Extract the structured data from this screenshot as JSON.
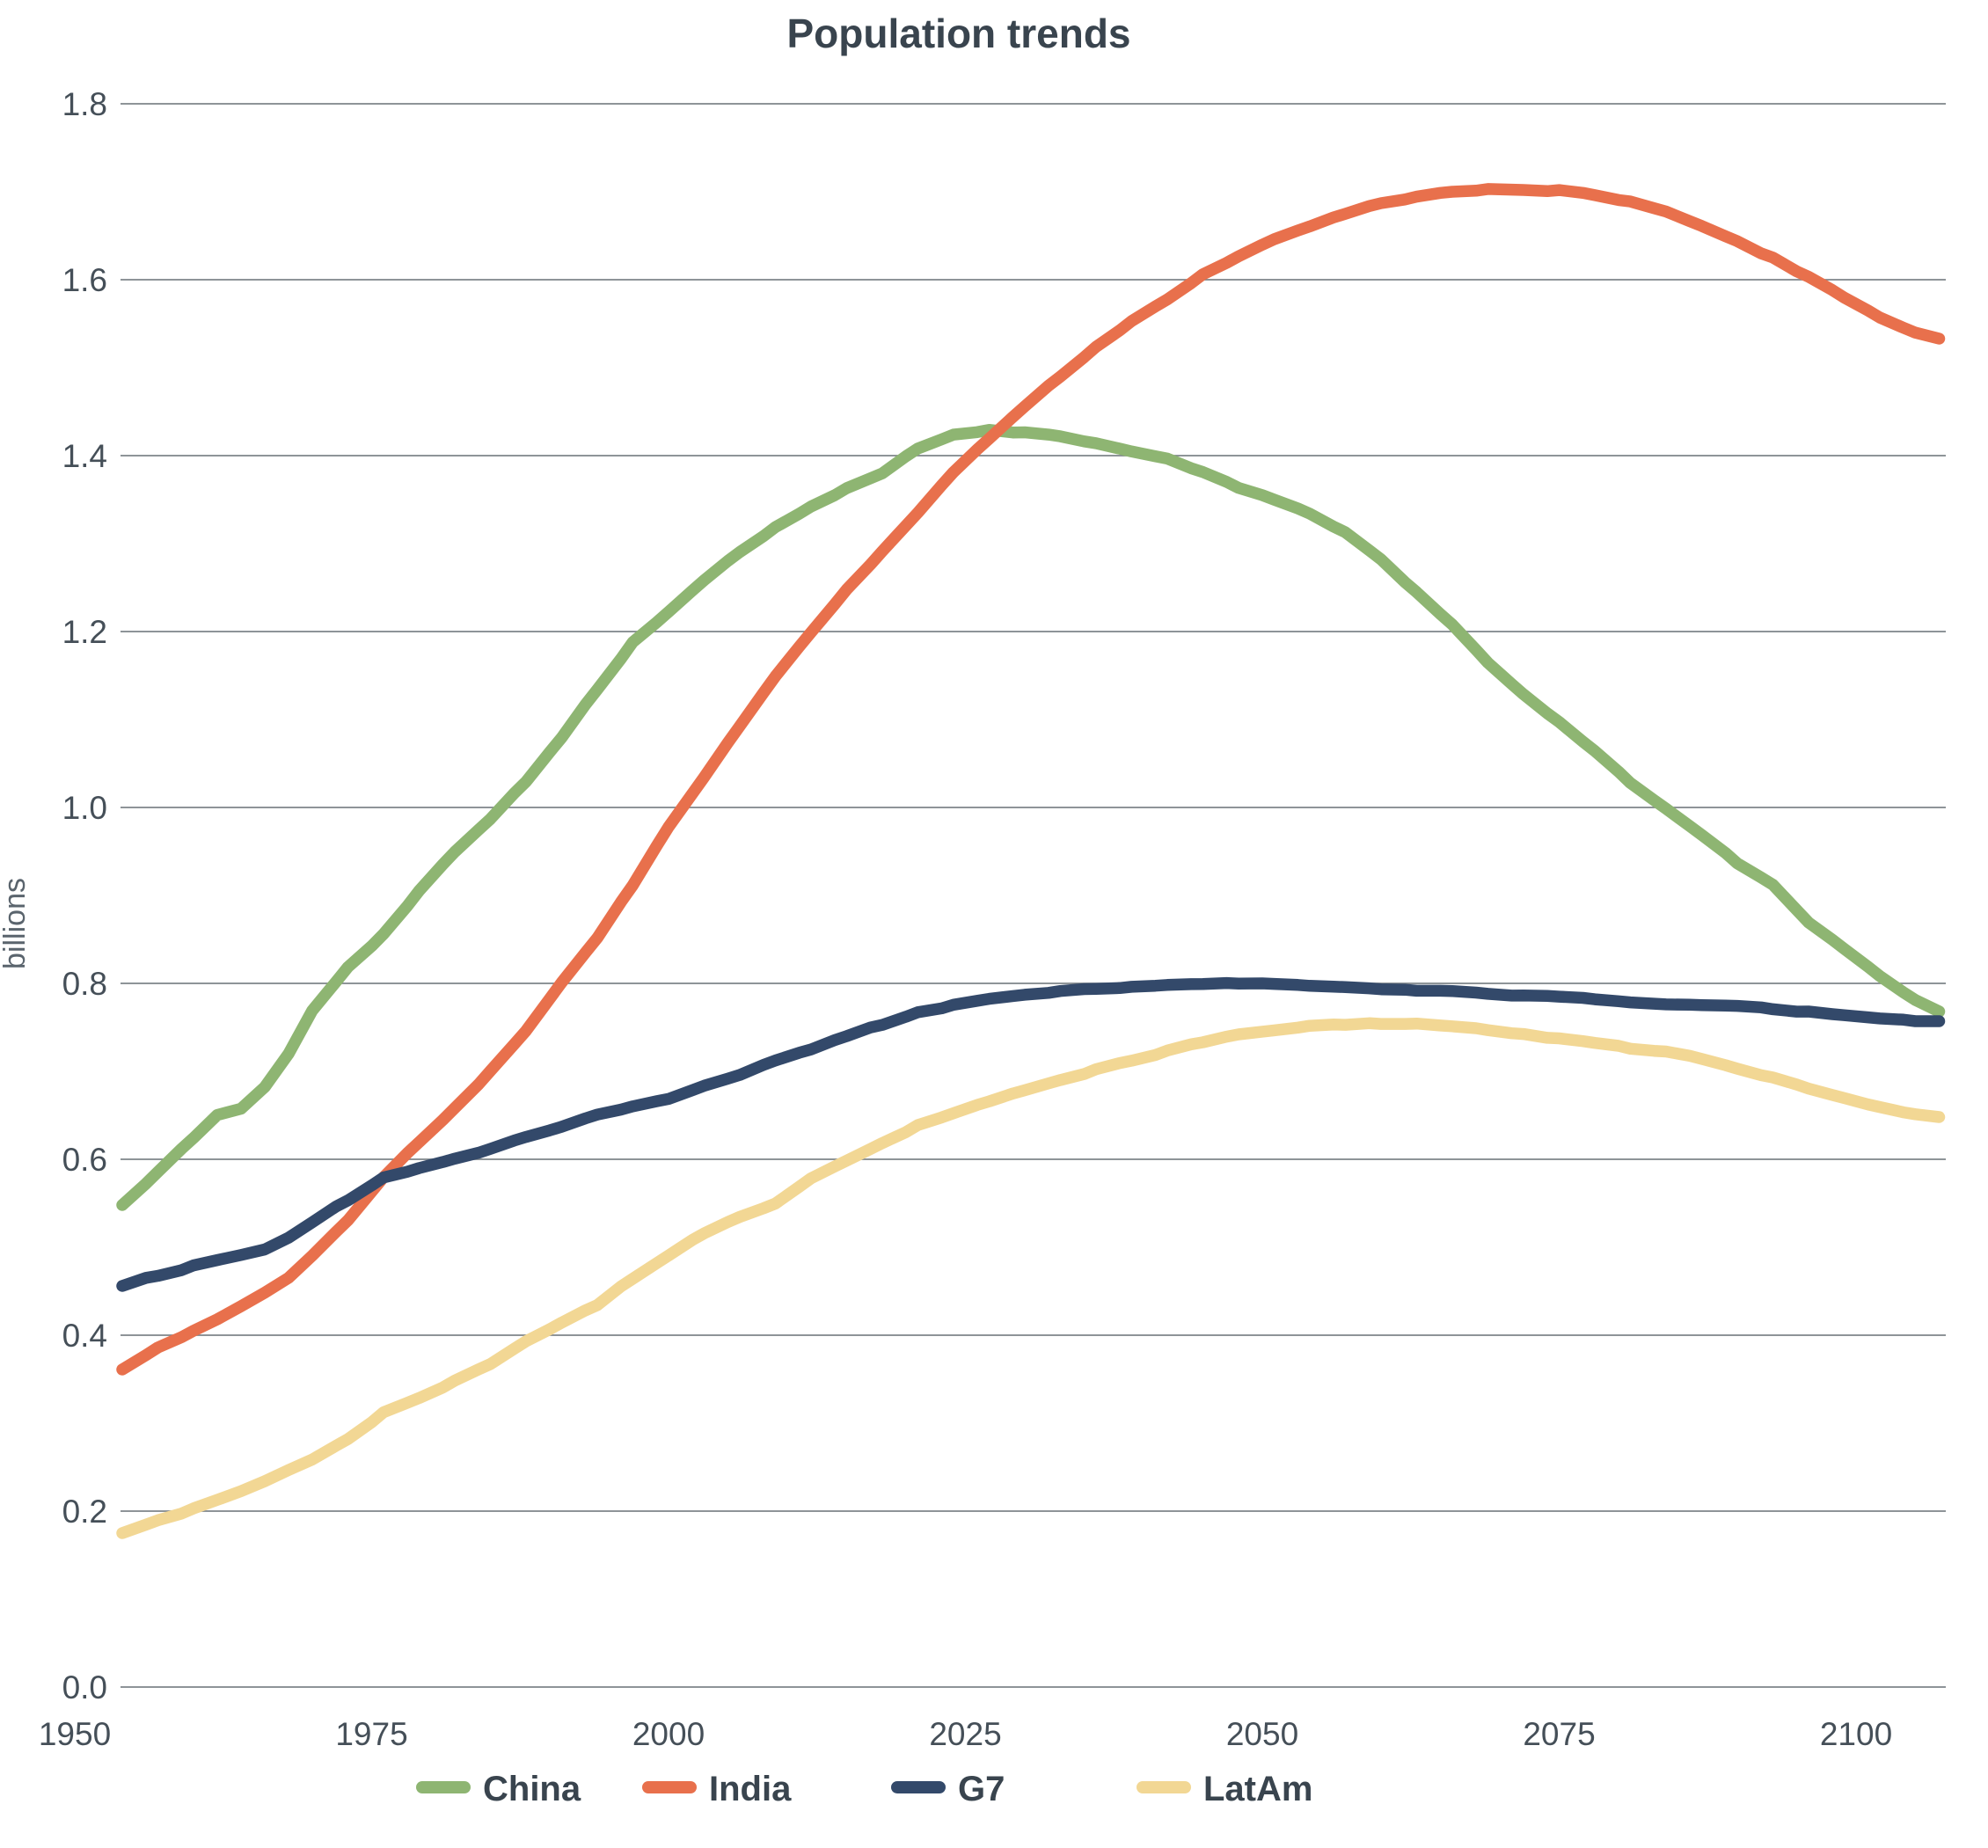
{
  "chart_data": {
    "type": "line",
    "title": "Population trends",
    "xlabel": "",
    "ylabel": "billions",
    "grid": "horizontal",
    "legend_position": "bottom",
    "background": "#ffffff",
    "gridline_color": "#7e8489",
    "text_color": "#39444e",
    "x_axis": {
      "ticks": [
        "1950",
        "1975",
        "2000",
        "2025",
        "2050",
        "2075",
        "2100"
      ],
      "tick_years": [
        1950,
        1975,
        2000,
        2025,
        2050,
        2075,
        2100
      ]
    },
    "y_axis": {
      "ticks": [
        "0.0",
        "0.2",
        "0.4",
        "0.6",
        "0.8",
        "1.0",
        "1.2",
        "1.4",
        "1.6",
        "1.8"
      ],
      "tick_values": [
        0,
        0.2,
        0.4,
        0.6,
        0.8,
        1.0,
        1.2,
        1.4,
        1.6,
        1.8
      ],
      "range": [
        0,
        1.8
      ]
    },
    "x_range_years": [
      1954,
      2107
    ],
    "years": [
      1954,
      1957,
      1960,
      1962,
      1964,
      1966,
      1968,
      1970,
      1973,
      1976,
      1979,
      1982,
      1985,
      1988,
      1991,
      1994,
      1997,
      2000,
      2003,
      2006,
      2009,
      2012,
      2015,
      2018,
      2021,
      2024,
      2027,
      2030,
      2033,
      2036,
      2039,
      2042,
      2045,
      2048,
      2051,
      2054,
      2057,
      2060,
      2063,
      2066,
      2069,
      2072,
      2075,
      2078,
      2081,
      2084,
      2087,
      2090,
      2093,
      2096,
      2099,
      2102,
      2105,
      2107
    ],
    "series": [
      {
        "name": "China",
        "color": "#8eb572",
        "values": [
          0.548,
          0.585,
          0.625,
          0.652,
          0.658,
          0.682,
          0.72,
          0.768,
          0.818,
          0.856,
          0.905,
          0.95,
          0.988,
          1.03,
          1.08,
          1.135,
          1.188,
          1.222,
          1.258,
          1.29,
          1.318,
          1.343,
          1.363,
          1.38,
          1.408,
          1.423,
          1.428,
          1.426,
          1.422,
          1.414,
          1.405,
          1.398,
          1.382,
          1.364,
          1.35,
          1.335,
          1.312,
          1.282,
          1.245,
          1.208,
          1.165,
          1.13,
          1.097,
          1.063,
          1.028,
          1.0,
          0.968,
          0.937,
          0.912,
          0.868,
          0.84,
          0.808,
          0.782,
          0.768
        ]
      },
      {
        "name": "India",
        "color": "#e8704c",
        "values": [
          0.361,
          0.385,
          0.405,
          0.418,
          0.432,
          0.447,
          0.465,
          0.49,
          0.53,
          0.578,
          0.62,
          0.658,
          0.7,
          0.745,
          0.8,
          0.85,
          0.912,
          0.978,
          1.035,
          1.092,
          1.148,
          1.2,
          1.248,
          1.292,
          1.335,
          1.382,
          1.42,
          1.455,
          1.49,
          1.523,
          1.552,
          1.578,
          1.605,
          1.625,
          1.645,
          1.66,
          1.675,
          1.688,
          1.695,
          1.7,
          1.702,
          1.703,
          1.702,
          1.697,
          1.688,
          1.678,
          1.662,
          1.645,
          1.625,
          1.603,
          1.58,
          1.558,
          1.54,
          1.533
        ]
      },
      {
        "name": "G7",
        "color": "#33496a",
        "values": [
          0.456,
          0.468,
          0.479,
          0.486,
          0.492,
          0.498,
          0.51,
          0.527,
          0.553,
          0.578,
          0.59,
          0.6,
          0.612,
          0.625,
          0.638,
          0.65,
          0.66,
          0.67,
          0.683,
          0.697,
          0.712,
          0.725,
          0.74,
          0.753,
          0.766,
          0.775,
          0.781,
          0.786,
          0.79,
          0.793,
          0.796,
          0.798,
          0.799,
          0.8,
          0.8,
          0.799,
          0.797,
          0.795,
          0.793,
          0.791,
          0.789,
          0.787,
          0.785,
          0.782,
          0.78,
          0.778,
          0.775,
          0.773,
          0.771,
          0.768,
          0.765,
          0.762,
          0.758,
          0.757
        ]
      },
      {
        "name": "LatAm",
        "color": "#f2d794",
        "values": [
          0.175,
          0.19,
          0.203,
          0.213,
          0.223,
          0.234,
          0.246,
          0.258,
          0.283,
          0.312,
          0.33,
          0.348,
          0.368,
          0.392,
          0.413,
          0.435,
          0.465,
          0.49,
          0.515,
          0.535,
          0.551,
          0.578,
          0.6,
          0.618,
          0.638,
          0.652,
          0.665,
          0.678,
          0.69,
          0.702,
          0.713,
          0.723,
          0.733,
          0.742,
          0.748,
          0.752,
          0.754,
          0.755,
          0.754,
          0.752,
          0.748,
          0.742,
          0.737,
          0.731,
          0.726,
          0.721,
          0.713,
          0.703,
          0.692,
          0.68,
          0.67,
          0.66,
          0.651,
          0.648
        ]
      }
    ]
  }
}
